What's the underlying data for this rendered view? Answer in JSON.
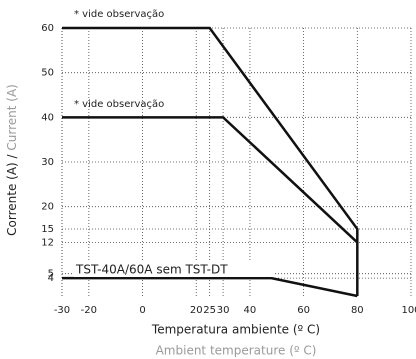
{
  "chart_data": {
    "type": "line",
    "y_title": "Corrente  (A) /",
    "y_title_2": "Current (A)",
    "x_title": "Temperatura ambiente (º C)",
    "x_title_2": "Ambient temperature (º C)",
    "annotations": [
      "* vide observação",
      "* vide observação"
    ],
    "xlim": [
      -30,
      100
    ],
    "xticks": [
      -30,
      -20,
      0,
      20,
      25,
      30,
      40,
      60,
      80,
      100
    ],
    "ylim": [
      0,
      60
    ],
    "yticks": [
      4,
      5,
      12,
      15,
      20,
      30,
      40,
      50,
      60
    ],
    "grid": true,
    "series": [
      {
        "color": "#111111",
        "x": [
          -30,
          25,
          80,
          80
        ],
        "values": [
          60,
          60,
          15,
          0
        ]
      },
      {
        "color": "#111111",
        "x": [
          -30,
          30,
          80
        ],
        "values": [
          40,
          40,
          12
        ]
      },
      {
        "name": "TST-40A/60A sem TST-DT",
        "color": "#111111",
        "x": [
          -30,
          48,
          80
        ],
        "values": [
          4,
          4,
          0
        ]
      }
    ]
  }
}
